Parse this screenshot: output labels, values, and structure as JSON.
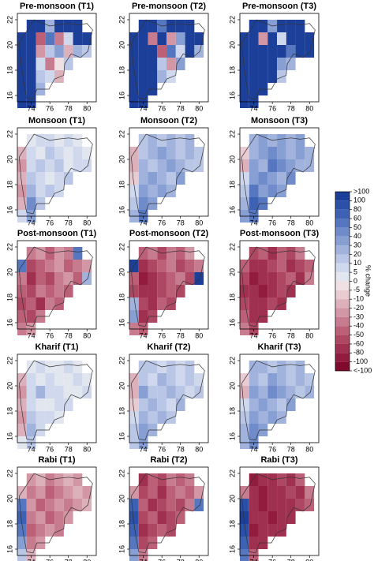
{
  "chart_data": {
    "type": "heatmap",
    "xlim": [
      72.5,
      81
    ],
    "ylim": [
      15.5,
      22.5
    ],
    "xticks": [
      74,
      76,
      78,
      80
    ],
    "yticks": [
      16,
      18,
      20,
      22
    ],
    "legend": {
      "title": "% change",
      "ticks": [
        ">100",
        100,
        80,
        60,
        50,
        40,
        30,
        20,
        10,
        5,
        0,
        -5,
        -10,
        -20,
        -30,
        -40,
        -50,
        -60,
        -80,
        -100,
        "<-100"
      ],
      "colors": [
        "#1c3f99",
        "#2a50a8",
        "#3d62b3",
        "#5677bf",
        "#6f8bc9",
        "#889fd3",
        "#a1b3dc",
        "#b9c6e5",
        "#cfd8ec",
        "#e2e6ee",
        "#eee0e3",
        "#e8ccd2",
        "#ddb1bb",
        "#d296a4",
        "#c77b8e",
        "#bb6077",
        "#ae4762",
        "#a0304f",
        "#921c3e",
        "#7f0a2c"
      ]
    },
    "panels": [
      {
        "title": "Pre-monsoon (T1)",
        "grid": [
          [
            null,
            130,
            150,
            30,
            140,
            120,
            130,
            null
          ],
          [
            150,
            140,
            -40,
            60,
            -30,
            10,
            150,
            140
          ],
          [
            150,
            120,
            -20,
            20,
            40,
            -10,
            30,
            20
          ],
          [
            140,
            130,
            10,
            -30,
            0,
            20,
            null,
            null
          ],
          [
            150,
            110,
            20,
            10,
            -10,
            null,
            null,
            null
          ],
          [
            150,
            140,
            30,
            null,
            null,
            null,
            null,
            null
          ],
          [
            150,
            140,
            null,
            null,
            null,
            null,
            null,
            null
          ]
        ]
      },
      {
        "title": "Pre-monsoon (T2)",
        "grid": [
          [
            null,
            140,
            150,
            60,
            150,
            130,
            140,
            null
          ],
          [
            150,
            150,
            -30,
            120,
            -20,
            40,
            150,
            150
          ],
          [
            150,
            140,
            130,
            -40,
            60,
            10,
            150,
            30
          ],
          [
            150,
            150,
            120,
            20,
            -20,
            40,
            null,
            null
          ],
          [
            150,
            150,
            130,
            30,
            10,
            null,
            null,
            null
          ],
          [
            150,
            150,
            120,
            null,
            null,
            null,
            null,
            null
          ],
          [
            150,
            150,
            null,
            null,
            null,
            null,
            null,
            null
          ]
        ]
      },
      {
        "title": "Pre-monsoon (T3)",
        "grid": [
          [
            null,
            150,
            140,
            40,
            150,
            150,
            140,
            null
          ],
          [
            150,
            150,
            -20,
            130,
            10,
            150,
            150,
            150
          ],
          [
            150,
            150,
            140,
            120,
            130,
            60,
            150,
            140
          ],
          [
            150,
            150,
            150,
            130,
            40,
            30,
            null,
            null
          ],
          [
            150,
            150,
            140,
            120,
            20,
            null,
            null,
            null
          ],
          [
            150,
            150,
            130,
            null,
            null,
            null,
            null,
            null
          ],
          [
            150,
            150,
            null,
            null,
            null,
            null,
            null,
            null
          ]
        ]
      },
      {
        "title": "Monsoon (T1)",
        "grid": [
          [
            null,
            5,
            10,
            10,
            5,
            10,
            5,
            null
          ],
          [
            -10,
            10,
            5,
            20,
            10,
            5,
            10,
            5
          ],
          [
            -20,
            10,
            20,
            10,
            20,
            5,
            10,
            10
          ],
          [
            -10,
            20,
            10,
            5,
            10,
            20,
            null,
            null
          ],
          [
            -20,
            30,
            10,
            20,
            10,
            null,
            null,
            null
          ],
          [
            -10,
            50,
            20,
            null,
            null,
            null,
            null,
            null
          ],
          [
            10,
            40,
            null,
            null,
            null,
            null,
            null,
            null
          ]
        ]
      },
      {
        "title": "Monsoon (T2)",
        "grid": [
          [
            null,
            20,
            30,
            20,
            30,
            20,
            30,
            null
          ],
          [
            -10,
            20,
            30,
            40,
            30,
            20,
            30,
            20
          ],
          [
            -10,
            30,
            20,
            30,
            40,
            30,
            20,
            20
          ],
          [
            -5,
            30,
            40,
            30,
            20,
            40,
            null,
            null
          ],
          [
            10,
            40,
            30,
            40,
            30,
            null,
            null,
            null
          ],
          [
            20,
            50,
            40,
            null,
            null,
            null,
            null,
            null
          ],
          [
            30,
            60,
            null,
            null,
            null,
            null,
            null,
            null
          ]
        ]
      },
      {
        "title": "Monsoon (T3)",
        "grid": [
          [
            null,
            30,
            40,
            30,
            40,
            30,
            40,
            null
          ],
          [
            -5,
            30,
            40,
            50,
            40,
            30,
            40,
            30
          ],
          [
            -10,
            40,
            30,
            60,
            50,
            40,
            30,
            30
          ],
          [
            10,
            40,
            50,
            40,
            30,
            50,
            null,
            null
          ],
          [
            20,
            60,
            40,
            50,
            40,
            null,
            null,
            null
          ],
          [
            30,
            80,
            60,
            null,
            null,
            null,
            null,
            null
          ],
          [
            40,
            60,
            null,
            null,
            null,
            null,
            null,
            null
          ]
        ]
      },
      {
        "title": "Post-monsoon (T1)",
        "grid": [
          [
            null,
            -30,
            -20,
            -40,
            -20,
            -30,
            60,
            null
          ],
          [
            60,
            -50,
            -40,
            -30,
            -20,
            -40,
            -30,
            -20
          ],
          [
            -30,
            -60,
            -40,
            -50,
            -30,
            -20,
            -40,
            30
          ],
          [
            -40,
            -50,
            -30,
            -40,
            -30,
            -40,
            null,
            null
          ],
          [
            -50,
            -40,
            -60,
            -30,
            -40,
            null,
            null,
            null
          ],
          [
            -40,
            -50,
            -30,
            null,
            null,
            null,
            null,
            null
          ],
          [
            -30,
            -20,
            null,
            null,
            null,
            null,
            null,
            null
          ]
        ]
      },
      {
        "title": "Post-monsoon (T2)",
        "grid": [
          [
            null,
            -40,
            -30,
            -50,
            -30,
            -40,
            -20,
            null
          ],
          [
            150,
            -60,
            -50,
            -40,
            -30,
            -50,
            -40,
            -30
          ],
          [
            -40,
            -80,
            -60,
            -50,
            -40,
            -30,
            -50,
            150
          ],
          [
            -50,
            -60,
            -70,
            -50,
            -40,
            -50,
            null,
            null
          ],
          [
            30,
            -50,
            -60,
            -40,
            -50,
            null,
            null,
            null
          ],
          [
            40,
            -60,
            -50,
            null,
            null,
            null,
            null,
            null
          ],
          [
            -30,
            -40,
            null,
            null,
            null,
            null,
            null,
            null
          ]
        ]
      },
      {
        "title": "Post-monsoon (T3)",
        "grid": [
          [
            null,
            -50,
            -40,
            -60,
            -40,
            -50,
            -30,
            null
          ],
          [
            -40,
            -70,
            -60,
            -50,
            -40,
            -60,
            -50,
            -40
          ],
          [
            -50,
            -80,
            -70,
            -60,
            -50,
            -40,
            -60,
            -30
          ],
          [
            -60,
            -70,
            -80,
            -60,
            -50,
            -60,
            null,
            null
          ],
          [
            -50,
            -60,
            -70,
            -50,
            -60,
            null,
            null,
            null
          ],
          [
            -40,
            -70,
            -60,
            null,
            null,
            null,
            null,
            null
          ],
          [
            -30,
            -50,
            null,
            null,
            null,
            null,
            null,
            null
          ]
        ]
      },
      {
        "title": "Kharif (T1)",
        "grid": [
          [
            null,
            5,
            10,
            5,
            5,
            10,
            5,
            null
          ],
          [
            -10,
            10,
            5,
            10,
            5,
            5,
            10,
            5
          ],
          [
            -20,
            10,
            30,
            10,
            10,
            5,
            5,
            10
          ],
          [
            -10,
            10,
            5,
            5,
            10,
            10,
            null,
            null
          ],
          [
            -20,
            20,
            10,
            10,
            5,
            null,
            null,
            null
          ],
          [
            -10,
            30,
            10,
            null,
            null,
            null,
            null,
            null
          ],
          [
            5,
            20,
            null,
            null,
            null,
            null,
            null,
            null
          ]
        ]
      },
      {
        "title": "Kharif (T2)",
        "grid": [
          [
            null,
            20,
            20,
            10,
            20,
            10,
            20,
            null
          ],
          [
            -10,
            20,
            10,
            30,
            20,
            10,
            20,
            10
          ],
          [
            -10,
            40,
            20,
            20,
            30,
            20,
            10,
            20
          ],
          [
            -5,
            20,
            30,
            20,
            10,
            30,
            null,
            null
          ],
          [
            10,
            30,
            20,
            30,
            20,
            null,
            null,
            null
          ],
          [
            20,
            40,
            30,
            null,
            null,
            null,
            null,
            null
          ],
          [
            20,
            40,
            null,
            null,
            null,
            null,
            null,
            null
          ]
        ]
      },
      {
        "title": "Kharif (T3)",
        "grid": [
          [
            null,
            30,
            30,
            20,
            30,
            20,
            30,
            null
          ],
          [
            -5,
            30,
            20,
            40,
            30,
            20,
            30,
            20
          ],
          [
            -10,
            40,
            30,
            50,
            40,
            30,
            20,
            30
          ],
          [
            10,
            30,
            40,
            30,
            20,
            40,
            null,
            null
          ],
          [
            20,
            40,
            30,
            40,
            30,
            null,
            null,
            null
          ],
          [
            30,
            50,
            40,
            null,
            null,
            null,
            null,
            null
          ],
          [
            30,
            50,
            null,
            null,
            null,
            null,
            null,
            null
          ]
        ]
      },
      {
        "title": "Rabi (T1)",
        "grid": [
          [
            null,
            -20,
            -10,
            -30,
            -20,
            -10,
            -20,
            null
          ],
          [
            -10,
            -30,
            -20,
            -40,
            -30,
            -20,
            -10,
            -20
          ],
          [
            60,
            -20,
            -40,
            -30,
            -20,
            -30,
            -20,
            -10
          ],
          [
            80,
            -30,
            -20,
            -40,
            -30,
            -20,
            null,
            null
          ],
          [
            60,
            -40,
            -30,
            -20,
            -30,
            null,
            null,
            null
          ],
          [
            40,
            -30,
            -20,
            null,
            null,
            null,
            null,
            null
          ],
          [
            20,
            -10,
            null,
            null,
            null,
            null,
            null,
            null
          ]
        ]
      },
      {
        "title": "Rabi (T2)",
        "grid": [
          [
            null,
            -60,
            -40,
            -50,
            -30,
            -40,
            -30,
            null
          ],
          [
            -20,
            -50,
            -40,
            -60,
            -40,
            -30,
            -40,
            -20
          ],
          [
            80,
            -40,
            -60,
            -50,
            -40,
            -50,
            -30,
            60
          ],
          [
            100,
            -50,
            -40,
            -60,
            -50,
            -40,
            null,
            null
          ],
          [
            80,
            -60,
            -50,
            -40,
            -50,
            null,
            null,
            null
          ],
          [
            60,
            -50,
            -40,
            null,
            null,
            null,
            null,
            null
          ],
          [
            40,
            -30,
            null,
            null,
            null,
            null,
            null,
            null
          ]
        ]
      },
      {
        "title": "Rabi (T3)",
        "grid": [
          [
            null,
            -80,
            -60,
            -70,
            -50,
            -60,
            -40,
            null
          ],
          [
            -30,
            -60,
            -80,
            -70,
            -60,
            -50,
            -60,
            -30
          ],
          [
            100,
            -60,
            -80,
            -70,
            -60,
            -70,
            -50,
            -40
          ],
          [
            130,
            -70,
            -60,
            -80,
            -70,
            -60,
            null,
            null
          ],
          [
            100,
            -80,
            -70,
            -60,
            -70,
            null,
            null,
            null
          ],
          [
            80,
            -70,
            -60,
            null,
            null,
            null,
            null,
            null
          ],
          [
            60,
            -40,
            null,
            null,
            null,
            null,
            null,
            null
          ]
        ]
      }
    ]
  }
}
